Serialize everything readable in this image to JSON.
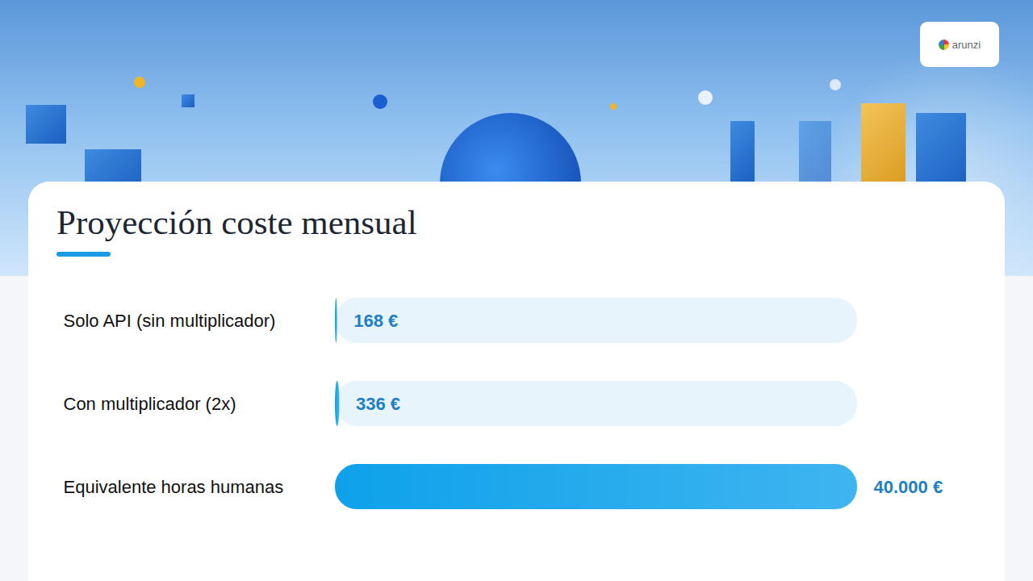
{
  "logo": "arunzi",
  "chart_data": {
    "type": "bar",
    "orientation": "horizontal",
    "title": "Proyección coste mensual",
    "categories": [
      "Solo API (sin multiplicador)",
      "Con multiplicador (2x)",
      "Equivalente horas humanas"
    ],
    "values": [
      168,
      336,
      40000
    ],
    "value_labels": [
      "168 €",
      "336 €",
      "40.000 €"
    ],
    "data_labels": true,
    "tick_labels": false,
    "grid": false,
    "xlim": [
      0,
      40000
    ],
    "color": "#0ea1ea"
  }
}
